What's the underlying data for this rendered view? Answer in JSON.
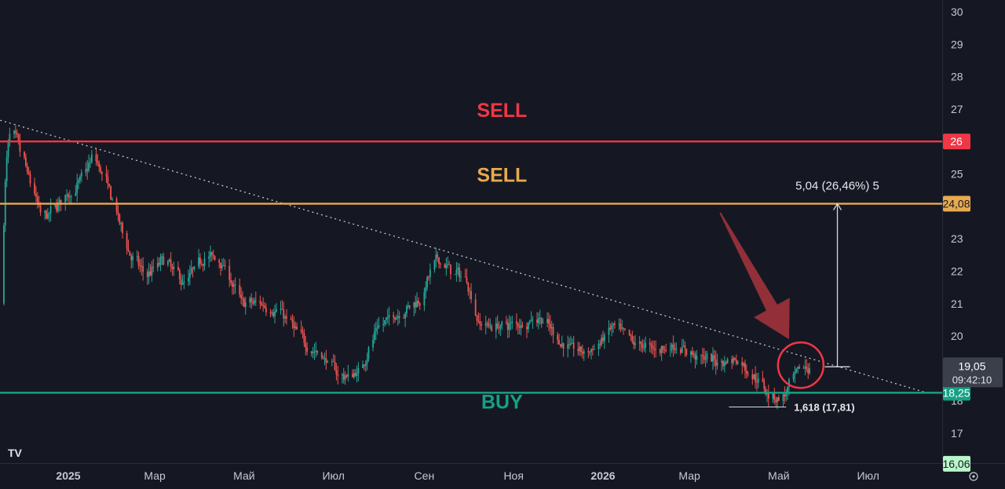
{
  "chart_data": {
    "type": "candlestick",
    "title": "",
    "xlabel": "",
    "ylabel": "",
    "ylim": [
      16,
      30.3
    ],
    "y_ticks": [
      17,
      18,
      19,
      20,
      21,
      22,
      23,
      24,
      25,
      26,
      27,
      28,
      29,
      30
    ],
    "x_ticks": [
      {
        "label": "2025",
        "date": "2025-01-01",
        "bold": true
      },
      {
        "label": "Мар",
        "date": "2025-03-01",
        "bold": false
      },
      {
        "label": "Май",
        "date": "2025-05-01",
        "bold": false
      },
      {
        "label": "Июл",
        "date": "2025-07-01",
        "bold": false
      },
      {
        "label": "Сен",
        "date": "2025-09-01",
        "bold": false
      },
      {
        "label": "Ноя",
        "date": "2025-11-01",
        "bold": false
      },
      {
        "label": "2026",
        "date": "2026-01-01",
        "bold": true
      },
      {
        "label": "Мар",
        "date": "2026-03-01",
        "bold": false
      },
      {
        "label": "Май",
        "date": "2026-05-01",
        "bold": false
      },
      {
        "label": "Июл",
        "date": "2026-07-01",
        "bold": false
      }
    ],
    "price_path": [
      [
        "2024-10-28",
        21.0
      ],
      [
        "2024-11-08",
        23.0
      ],
      [
        "2024-11-22",
        26.5
      ],
      [
        "2024-12-03",
        25.0
      ],
      [
        "2024-12-14",
        23.5
      ],
      [
        "2024-12-26",
        24.2
      ],
      [
        "2025-01-06",
        24.6
      ],
      [
        "2025-01-18",
        25.6
      ],
      [
        "2025-01-30",
        24.2
      ],
      [
        "2025-02-10",
        22.6
      ],
      [
        "2025-02-22",
        21.8
      ],
      [
        "2025-03-06",
        22.4
      ],
      [
        "2025-03-20",
        21.6
      ],
      [
        "2025-04-03",
        22.5
      ],
      [
        "2025-04-15",
        22.3
      ],
      [
        "2025-04-28",
        21.0
      ],
      [
        "2025-05-12",
        21.0
      ],
      [
        "2025-05-26",
        20.7
      ],
      [
        "2025-06-10",
        19.8
      ],
      [
        "2025-06-24",
        19.3
      ],
      [
        "2025-07-06",
        18.7
      ],
      [
        "2025-07-18",
        18.9
      ],
      [
        "2025-07-29",
        20.2
      ],
      [
        "2025-08-09",
        20.6
      ],
      [
        "2025-08-20",
        20.9
      ],
      [
        "2025-08-29",
        21.2
      ],
      [
        "2025-09-08",
        22.4
      ],
      [
        "2025-09-19",
        22.0
      ],
      [
        "2025-09-30",
        21.7
      ],
      [
        "2025-10-06",
        20.4
      ],
      [
        "2025-10-20",
        20.3
      ],
      [
        "2025-11-05",
        20.4
      ],
      [
        "2025-11-18",
        20.6
      ],
      [
        "2025-12-02",
        19.8
      ],
      [
        "2025-12-16",
        19.5
      ],
      [
        "2025-12-26",
        19.6
      ],
      [
        "2026-01-06",
        20.3
      ],
      [
        "2026-01-20",
        19.8
      ],
      [
        "2026-02-04",
        19.6
      ],
      [
        "2026-02-18",
        19.7
      ],
      [
        "2026-03-04",
        19.4
      ],
      [
        "2026-03-18",
        19.2
      ],
      [
        "2026-04-01",
        19.3
      ],
      [
        "2026-04-12",
        18.8
      ],
      [
        "2026-04-24",
        18.2
      ],
      [
        "2026-05-03",
        18.05
      ],
      [
        "2026-05-08",
        18.5
      ],
      [
        "2026-05-15",
        19.0
      ],
      [
        "2026-05-23",
        19.05
      ]
    ],
    "horizontal_levels": [
      {
        "name": "SELL",
        "value": 26,
        "value_label": "26",
        "color": "#f23645",
        "label_date": "2025-09-01",
        "label_value": 27.0
      },
      {
        "name": "SELL",
        "value": 24.08,
        "value_label": "24,08",
        "color": "#e8a94f",
        "label_date": "2025-09-01",
        "label_value": 25.0
      },
      {
        "name": "BUY",
        "value": 18.25,
        "value_label": "18,25",
        "color": "#16a085",
        "label_date": "2025-09-01",
        "label_value": 18.0
      }
    ],
    "trendline": {
      "from": [
        "2024-10-28",
        26.9
      ],
      "to": [
        "2026-08-10",
        18.25
      ],
      "color": "#cfd3dc"
    },
    "current_price": {
      "value": 19.05,
      "value_label": "19,05",
      "countdown": "09:42:10"
    },
    "low_price_label": {
      "value": 16.06,
      "value_label": "16,06"
    },
    "fib_annotation": {
      "text": "1,618 (17,81)",
      "value": 17.81,
      "from": "2026-03-28",
      "to": "2026-05-06"
    },
    "measure": {
      "text": "5,04 (26,46%) 5",
      "date": "2026-06-10",
      "from_value": 19.05,
      "to_value": 24.08
    },
    "arrow": {
      "from": [
        "2026-03-22",
        23.8
      ],
      "to": [
        "2026-05-08",
        19.9
      ],
      "color": "#a8343c"
    },
    "highlight_circle": {
      "center": [
        "2026-05-16",
        19.1
      ],
      "color": "#f23645"
    },
    "logo_text": "TV",
    "settings_icon": "target-icon"
  }
}
